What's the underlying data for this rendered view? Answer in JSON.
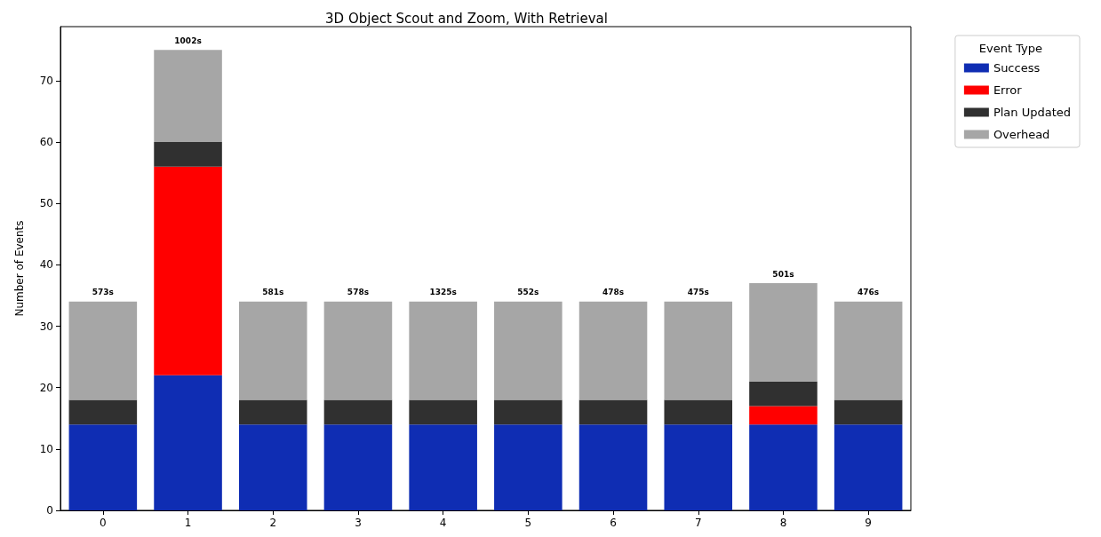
{
  "chart_data": {
    "type": "bar",
    "title": "3D Object Scout and Zoom, With Retrieval",
    "ylabel": "Number of Events",
    "legend_title": "Event Type",
    "categories": [
      "0",
      "1",
      "2",
      "3",
      "4",
      "5",
      "6",
      "7",
      "8",
      "9"
    ],
    "stacked": true,
    "series": [
      {
        "name": "Success",
        "color": "#0f2db3",
        "values": [
          14,
          22,
          14,
          14,
          14,
          14,
          14,
          14,
          14,
          14
        ]
      },
      {
        "name": "Error",
        "color": "#ff0000",
        "values": [
          0,
          34,
          0,
          0,
          0,
          0,
          0,
          0,
          3,
          0
        ]
      },
      {
        "name": "Plan Updated",
        "color": "#303030",
        "values": [
          4,
          4,
          4,
          4,
          4,
          4,
          4,
          4,
          4,
          4
        ]
      },
      {
        "name": "Overhead",
        "color": "#a6a6a6",
        "values": [
          16,
          15,
          16,
          16,
          16,
          16,
          16,
          16,
          16,
          16
        ]
      }
    ],
    "annotations": [
      {
        "text": "573s",
        "x": "0",
        "y": 34
      },
      {
        "text": "1002s",
        "x": "1",
        "y": 75
      },
      {
        "text": "581s",
        "x": "2",
        "y": 34
      },
      {
        "text": "578s",
        "x": "3",
        "y": 34
      },
      {
        "text": "1325s",
        "x": "4",
        "y": 34
      },
      {
        "text": "552s",
        "x": "5",
        "y": 34
      },
      {
        "text": "478s",
        "x": "6",
        "y": 34
      },
      {
        "text": "475s",
        "x": "7",
        "y": 34
      },
      {
        "text": "501s",
        "x": "8",
        "y": 37
      },
      {
        "text": "476s",
        "x": "9",
        "y": 34
      }
    ],
    "ylim": [
      0,
      78.8
    ],
    "yticks": [
      0,
      10,
      20,
      30,
      40,
      50,
      60,
      70
    ],
    "grid": false,
    "legend": "top right"
  }
}
